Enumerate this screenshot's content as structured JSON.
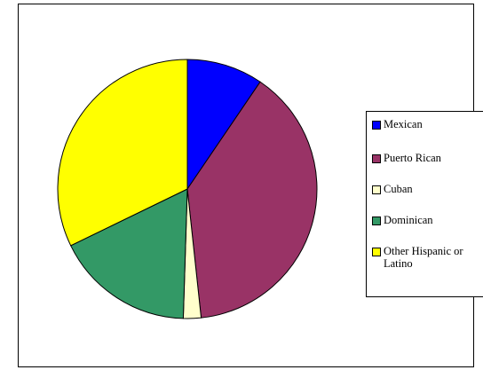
{
  "chart_data": {
    "type": "pie",
    "categories": [
      "Mexican",
      "Puerto Rican",
      "Cuban",
      "Dominican",
      "Other Hispanic or Latino"
    ],
    "values": [
      9.5,
      38.8,
      2.2,
      17.3,
      32.2
    ],
    "colors": [
      "#0000FF",
      "#993366",
      "#FFFFCC",
      "#339966",
      "#FFFF00"
    ],
    "start_angle_deg": 0,
    "direction": "clockwise",
    "legend_position": "right",
    "title": ""
  }
}
